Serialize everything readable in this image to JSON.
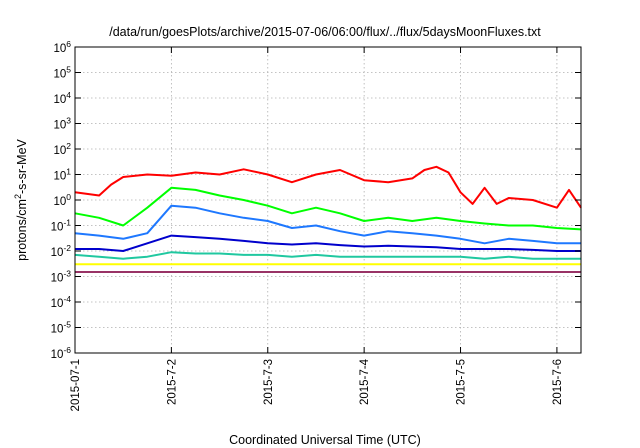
{
  "chart_data": {
    "type": "line",
    "title": "/data/run/goesPlots/archive/2015-07-06/06:00/flux/../flux/5daysMoonFluxes.txt",
    "xlabel": "Coordinated Universal Time (UTC)",
    "ylabel": {
      "prefix": "protons/cm",
      "sup": "2",
      "suffix": "-s-sr-MeV"
    },
    "y_scale": "log",
    "ylim": [
      1e-06,
      1000000.0
    ],
    "y_ticks": [
      {
        "value": 1e-06,
        "base": "10",
        "exp": "-6"
      },
      {
        "value": 1e-05,
        "base": "10",
        "exp": "-5"
      },
      {
        "value": 0.0001,
        "base": "10",
        "exp": "-4"
      },
      {
        "value": 0.001,
        "base": "10",
        "exp": "-3"
      },
      {
        "value": 0.01,
        "base": "10",
        "exp": "-2"
      },
      {
        "value": 0.1,
        "base": "10",
        "exp": "-1"
      },
      {
        "value": 1,
        "base": "10",
        "exp": "0"
      },
      {
        "value": 10.0,
        "base": "10",
        "exp": "1"
      },
      {
        "value": 100.0,
        "base": "10",
        "exp": "2"
      },
      {
        "value": 1000.0,
        "base": "10",
        "exp": "3"
      },
      {
        "value": 10000.0,
        "base": "10",
        "exp": "4"
      },
      {
        "value": 100000.0,
        "base": "10",
        "exp": "5"
      },
      {
        "value": 1000000.0,
        "base": "10",
        "exp": "6"
      }
    ],
    "xlim": [
      "2015-07-01T00:00",
      "2015-07-06T06:00"
    ],
    "x_ticks": [
      {
        "value": "2015-07-01T00:00",
        "label": "2015-07-1"
      },
      {
        "value": "2015-07-02T00:00",
        "label": "2015-7-2"
      },
      {
        "value": "2015-07-03T00:00",
        "label": "2015-7-3"
      },
      {
        "value": "2015-07-04T00:00",
        "label": "2015-7-4"
      },
      {
        "value": "2015-07-05T00:00",
        "label": "2015-7-5"
      },
      {
        "value": "2015-07-06T00:00",
        "label": "2015-7-6"
      }
    ],
    "grid": true,
    "series": [
      {
        "color": "#ff0000",
        "x": [
          "2015-07-01T00:00",
          "2015-07-01T06:00",
          "2015-07-01T09:00",
          "2015-07-01T12:00",
          "2015-07-01T18:00",
          "2015-07-02T00:00",
          "2015-07-02T06:00",
          "2015-07-02T12:00",
          "2015-07-02T18:00",
          "2015-07-03T00:00",
          "2015-07-03T06:00",
          "2015-07-03T12:00",
          "2015-07-03T18:00",
          "2015-07-04T00:00",
          "2015-07-04T06:00",
          "2015-07-04T12:00",
          "2015-07-04T15:00",
          "2015-07-04T18:00",
          "2015-07-04T21:00",
          "2015-07-05T00:00",
          "2015-07-05T03:00",
          "2015-07-05T06:00",
          "2015-07-05T09:00",
          "2015-07-05T12:00",
          "2015-07-05T18:00",
          "2015-07-06T00:00",
          "2015-07-06T03:00",
          "2015-07-06T06:00"
        ],
        "y": [
          2,
          1.5,
          4,
          8,
          10,
          9,
          12,
          10,
          16,
          10,
          5,
          10,
          15,
          6,
          5,
          7,
          15,
          20,
          12,
          2,
          0.7,
          3,
          0.7,
          1.2,
          1.0,
          0.5,
          2.5,
          0.5
        ]
      },
      {
        "color": "#00ff00",
        "x": [
          "2015-07-01T00:00",
          "2015-07-01T06:00",
          "2015-07-01T12:00",
          "2015-07-01T18:00",
          "2015-07-02T00:00",
          "2015-07-02T06:00",
          "2015-07-02T12:00",
          "2015-07-02T18:00",
          "2015-07-03T00:00",
          "2015-07-03T06:00",
          "2015-07-03T12:00",
          "2015-07-03T18:00",
          "2015-07-04T00:00",
          "2015-07-04T06:00",
          "2015-07-04T12:00",
          "2015-07-04T18:00",
          "2015-07-05T00:00",
          "2015-07-05T06:00",
          "2015-07-05T12:00",
          "2015-07-05T18:00",
          "2015-07-06T00:00",
          "2015-07-06T06:00"
        ],
        "y": [
          0.3,
          0.2,
          0.1,
          0.5,
          3,
          2.5,
          1.5,
          1.0,
          0.6,
          0.3,
          0.5,
          0.3,
          0.15,
          0.2,
          0.15,
          0.2,
          0.15,
          0.12,
          0.1,
          0.1,
          0.08,
          0.07
        ]
      },
      {
        "color": "#1e78ff",
        "x": [
          "2015-07-01T00:00",
          "2015-07-01T06:00",
          "2015-07-01T12:00",
          "2015-07-01T18:00",
          "2015-07-02T00:00",
          "2015-07-02T06:00",
          "2015-07-02T12:00",
          "2015-07-02T18:00",
          "2015-07-03T00:00",
          "2015-07-03T06:00",
          "2015-07-03T12:00",
          "2015-07-03T18:00",
          "2015-07-04T00:00",
          "2015-07-04T06:00",
          "2015-07-04T12:00",
          "2015-07-04T18:00",
          "2015-07-05T00:00",
          "2015-07-05T06:00",
          "2015-07-05T12:00",
          "2015-07-05T18:00",
          "2015-07-06T00:00",
          "2015-07-06T06:00"
        ],
        "y": [
          0.05,
          0.04,
          0.03,
          0.05,
          0.6,
          0.5,
          0.3,
          0.2,
          0.15,
          0.08,
          0.1,
          0.06,
          0.04,
          0.06,
          0.05,
          0.04,
          0.03,
          0.02,
          0.03,
          0.025,
          0.02,
          0.02
        ]
      },
      {
        "color": "#0000cc",
        "x": [
          "2015-07-01T00:00",
          "2015-07-01T06:00",
          "2015-07-01T12:00",
          "2015-07-01T18:00",
          "2015-07-02T00:00",
          "2015-07-02T06:00",
          "2015-07-02T12:00",
          "2015-07-02T18:00",
          "2015-07-03T00:00",
          "2015-07-03T06:00",
          "2015-07-03T12:00",
          "2015-07-03T18:00",
          "2015-07-04T00:00",
          "2015-07-04T06:00",
          "2015-07-04T12:00",
          "2015-07-04T18:00",
          "2015-07-05T00:00",
          "2015-07-05T06:00",
          "2015-07-05T12:00",
          "2015-07-05T18:00",
          "2015-07-06T00:00",
          "2015-07-06T06:00"
        ],
        "y": [
          0.012,
          0.012,
          0.01,
          0.02,
          0.04,
          0.035,
          0.03,
          0.025,
          0.02,
          0.018,
          0.02,
          0.017,
          0.015,
          0.016,
          0.015,
          0.014,
          0.012,
          0.012,
          0.012,
          0.011,
          0.01,
          0.01
        ]
      },
      {
        "color": "#20c8a0",
        "x": [
          "2015-07-01T00:00",
          "2015-07-01T06:00",
          "2015-07-01T12:00",
          "2015-07-01T18:00",
          "2015-07-02T00:00",
          "2015-07-02T06:00",
          "2015-07-02T12:00",
          "2015-07-02T18:00",
          "2015-07-03T00:00",
          "2015-07-03T06:00",
          "2015-07-03T12:00",
          "2015-07-03T18:00",
          "2015-07-04T00:00",
          "2015-07-04T06:00",
          "2015-07-04T12:00",
          "2015-07-04T18:00",
          "2015-07-05T00:00",
          "2015-07-05T06:00",
          "2015-07-05T12:00",
          "2015-07-05T18:00",
          "2015-07-06T00:00",
          "2015-07-06T06:00"
        ],
        "y": [
          0.007,
          0.006,
          0.005,
          0.006,
          0.009,
          0.008,
          0.008,
          0.007,
          0.007,
          0.006,
          0.007,
          0.006,
          0.006,
          0.006,
          0.006,
          0.006,
          0.006,
          0.005,
          0.006,
          0.005,
          0.005,
          0.005
        ]
      },
      {
        "color": "#ffff00",
        "x": [
          "2015-07-01T00:00",
          "2015-07-02T00:00",
          "2015-07-03T00:00",
          "2015-07-04T00:00",
          "2015-07-05T00:00",
          "2015-07-06T00:00",
          "2015-07-06T06:00"
        ],
        "y": [
          0.003,
          0.003,
          0.003,
          0.003,
          0.003,
          0.003,
          0.003
        ]
      },
      {
        "color": "#993366",
        "x": [
          "2015-07-01T00:00",
          "2015-07-02T00:00",
          "2015-07-03T00:00",
          "2015-07-04T00:00",
          "2015-07-05T00:00",
          "2015-07-06T00:00",
          "2015-07-06T06:00"
        ],
        "y": [
          0.0015,
          0.0015,
          0.0015,
          0.0015,
          0.0015,
          0.0015,
          0.0015
        ]
      }
    ]
  }
}
